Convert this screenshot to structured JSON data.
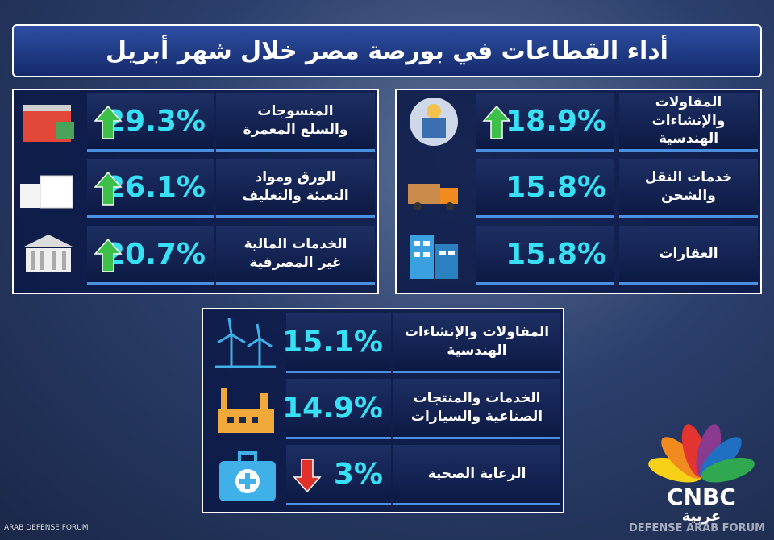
{
  "header": {
    "title": "أداء القطاعات في بورصة مصر خلال شهر أبريل"
  },
  "panels": [
    {
      "items": [
        {
          "label": [
            "المقاولات والإنشاءات",
            "الهندسية"
          ],
          "value": "18.9%",
          "trend": "up"
        },
        {
          "label": [
            "خدمات النقل والشحن"
          ],
          "value": "15.8%"
        },
        {
          "label": [
            "العقارات"
          ],
          "value": "15.8%"
        }
      ]
    },
    {
      "items": [
        {
          "label": [
            "المنسوجات",
            "والسلع المعمرة"
          ],
          "value": "29.3%",
          "trend": "up"
        },
        {
          "label": [
            "الورق ومواد",
            "التعبئة والتغليف"
          ],
          "value": "26.1%",
          "trend": "up"
        },
        {
          "label": [
            "الخدمات المالية",
            "غير المصرفية"
          ],
          "value": "20.7%",
          "trend": "up"
        }
      ]
    },
    {
      "items": [
        {
          "label": [
            "المقاولات والإنشاءات",
            "الهندسية"
          ],
          "value": "15.1%"
        },
        {
          "label": [
            "الخدمات والمنتجات",
            "الصناعية والسيارات"
          ],
          "value": "14.9%"
        },
        {
          "label": [
            "الرعاية الصحية"
          ],
          "value": "3%",
          "trend": "down"
        }
      ]
    }
  ],
  "logo": {
    "name": "CNBC",
    "sub": "عربية"
  },
  "watermarks": [
    "ARAB DEFENSE FORUM",
    "DEFENSE ARAB FORUM"
  ]
}
